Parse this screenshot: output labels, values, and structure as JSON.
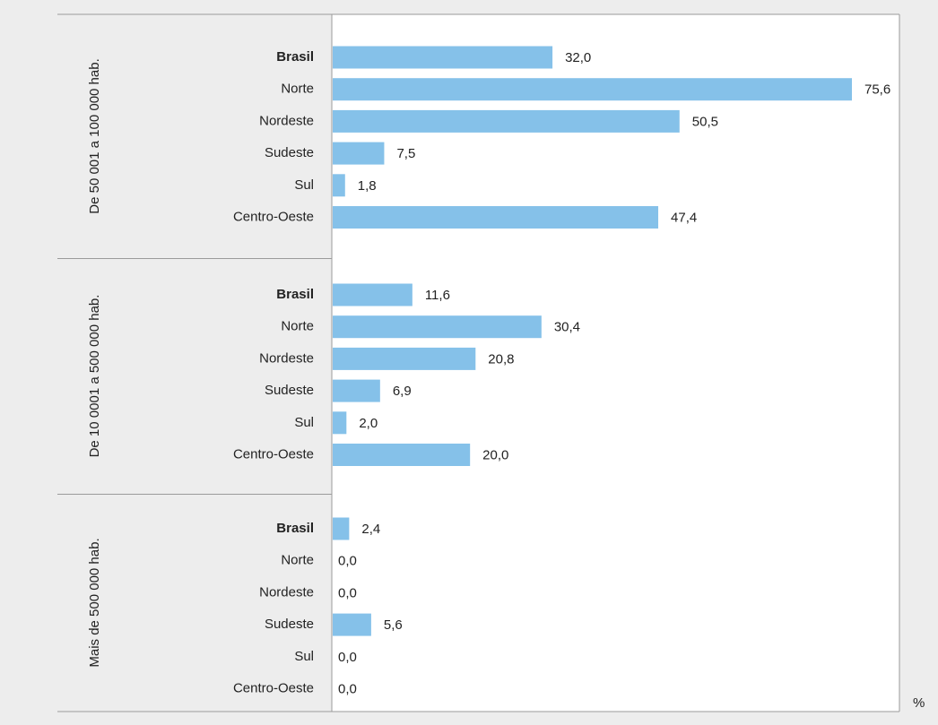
{
  "chart_data": {
    "type": "bar",
    "orientation": "horizontal",
    "title": "",
    "xlabel": "",
    "ylabel": "",
    "unit": "%",
    "xlim": [
      0,
      80
    ],
    "grid": false,
    "bar_color": "#85c1e9",
    "groups": [
      {
        "name": "De 50 001 a 100 000 hab.",
        "categories": [
          "Brasil",
          "Norte",
          "Nordeste",
          "Sudeste",
          "Sul",
          "Centro-Oeste"
        ],
        "values": [
          32.0,
          75.6,
          50.5,
          7.5,
          1.8,
          47.4
        ],
        "value_labels": [
          "32,0",
          "75,6",
          "50,5",
          "7,5",
          "1,8",
          "47,4"
        ]
      },
      {
        "name": "De 10 0001 a 500 000 hab.",
        "categories": [
          "Brasil",
          "Norte",
          "Nordeste",
          "Sudeste",
          "Sul",
          "Centro-Oeste"
        ],
        "values": [
          11.6,
          30.4,
          20.8,
          6.9,
          2.0,
          20.0
        ],
        "value_labels": [
          "11,6",
          "30,4",
          "20,8",
          "6,9",
          "2,0",
          "20,0"
        ]
      },
      {
        "name": "Mais de 500 000 hab.",
        "categories": [
          "Brasil",
          "Norte",
          "Nordeste",
          "Sudeste",
          "Sul",
          "Centro-Oeste"
        ],
        "values": [
          2.4,
          0.0,
          0.0,
          5.6,
          0.0,
          0.0
        ],
        "value_labels": [
          "2,4",
          "0,0",
          "0,0",
          "5,6",
          "0,0",
          "0,0"
        ]
      }
    ]
  }
}
